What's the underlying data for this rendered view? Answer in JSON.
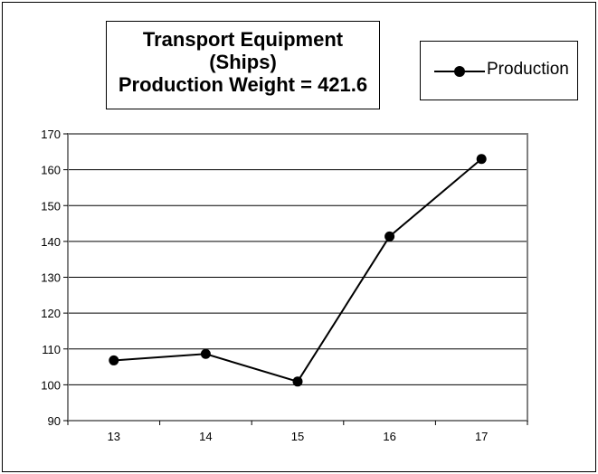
{
  "title_lines": [
    "Transport Equipment",
    "(Ships)",
    "Production Weight = 421.6"
  ],
  "legend": {
    "label": "Production",
    "marker": "filled-circle"
  },
  "chart_data": {
    "type": "line",
    "title": "Transport Equipment (Ships) Production Weight = 421.6",
    "categories": [
      "13",
      "14",
      "15",
      "16",
      "17"
    ],
    "series": [
      {
        "name": "Production",
        "values": [
          106.8,
          108.6,
          100.9,
          141.4,
          163.0
        ],
        "color": "#000000",
        "marker": "circle"
      }
    ],
    "xlabel": "",
    "ylabel": "",
    "ylim": [
      90,
      170
    ],
    "yticks": [
      90,
      100,
      110,
      120,
      130,
      140,
      150,
      160,
      170
    ],
    "grid": true,
    "legend_position": "top-right"
  }
}
